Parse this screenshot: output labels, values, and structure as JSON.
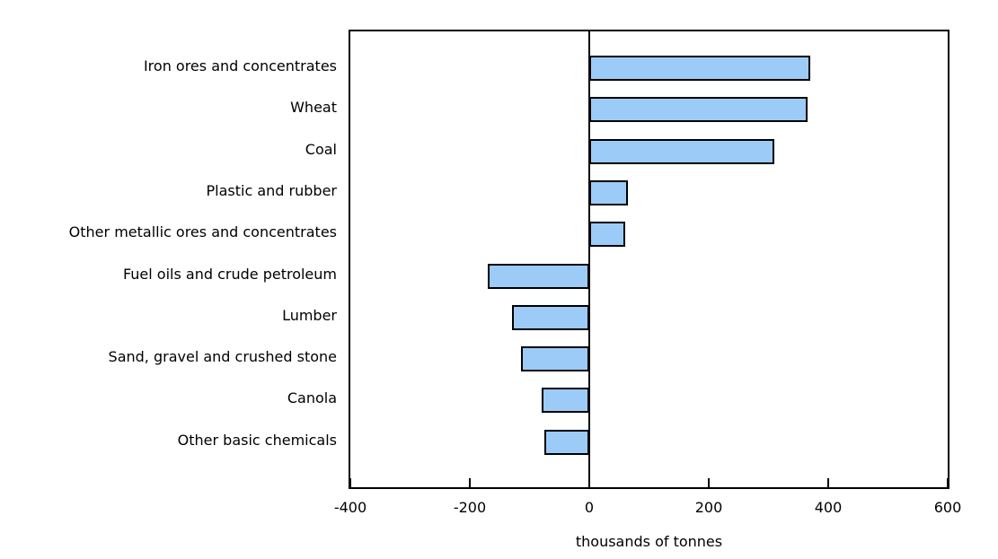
{
  "chart_data": {
    "type": "bar",
    "orientation": "horizontal",
    "title": "",
    "xlabel": "thousands of tonnes",
    "ylabel": "",
    "xlim": [
      -400,
      600
    ],
    "xticks": [
      -400,
      -200,
      0,
      200,
      400,
      600
    ],
    "grid": false,
    "legend": "none",
    "categories": [
      "Iron ores and concentrates",
      "Wheat",
      "Coal",
      "Plastic and rubber",
      "Other metallic ores and concentrates",
      "Fuel oils and crude petroleum",
      "Lumber",
      "Sand, gravel and crushed stone",
      "Canola",
      "Other basic chemicals"
    ],
    "values": [
      370,
      365,
      310,
      65,
      60,
      -170,
      -130,
      -115,
      -80,
      -75
    ],
    "colors": {
      "bar_fill": "#9CCBF7",
      "bar_border": "#000000",
      "axis": "#000000",
      "background": "#ffffff",
      "text": "#000000"
    }
  }
}
